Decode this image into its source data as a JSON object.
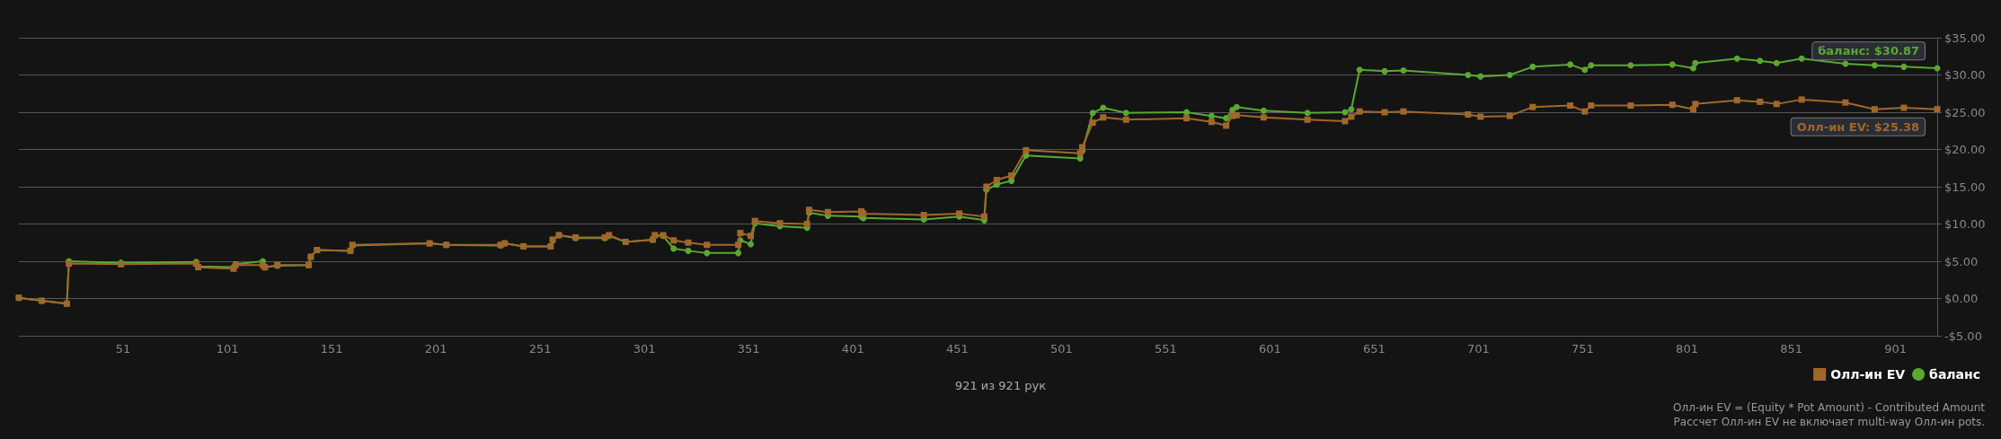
{
  "chart_data": {
    "type": "line",
    "xlabel": "921 из 921 рук",
    "x": [
      1,
      12,
      24,
      25,
      50,
      86,
      87,
      104,
      105,
      118,
      119,
      125,
      140,
      141,
      144,
      160,
      161,
      198,
      206,
      232,
      234,
      243,
      256,
      257,
      260,
      268,
      282,
      284,
      292,
      305,
      306,
      310,
      315,
      322,
      331,
      346,
      347,
      352,
      354,
      366,
      379,
      380,
      389,
      405,
      406,
      435,
      452,
      464,
      465,
      470,
      477,
      484,
      510,
      511,
      516,
      521,
      532,
      561,
      573,
      580,
      583,
      585,
      598,
      619,
      637,
      640,
      644,
      656,
      665,
      696,
      702,
      716,
      727,
      745,
      752,
      755,
      774,
      794,
      804,
      805,
      825,
      836,
      844,
      856,
      877,
      891,
      905,
      921
    ],
    "series": [
      {
        "name": "Олл-ин EV",
        "color": "#a0672a",
        "marker": "square",
        "values": [
          0.1,
          -0.3,
          -0.7,
          4.7,
          4.6,
          4.7,
          4.2,
          4.0,
          4.5,
          4.5,
          4.2,
          4.5,
          4.5,
          5.6,
          6.5,
          6.4,
          7.2,
          7.4,
          7.2,
          7.2,
          7.4,
          7.0,
          7.0,
          7.9,
          8.5,
          8.2,
          8.2,
          8.5,
          7.6,
          7.9,
          8.5,
          8.5,
          7.8,
          7.5,
          7.2,
          7.2,
          8.8,
          8.4,
          10.4,
          10.1,
          10.0,
          11.9,
          11.6,
          11.7,
          11.4,
          11.2,
          11.4,
          11.0,
          15.0,
          15.9,
          16.5,
          19.9,
          19.5,
          20.3,
          23.6,
          24.3,
          24.0,
          24.2,
          23.7,
          23.2,
          24.5,
          24.6,
          24.3,
          24.0,
          23.8,
          24.4,
          25.1,
          25.0,
          25.1,
          24.7,
          24.4,
          24.5,
          25.7,
          25.9,
          25.1,
          25.9,
          25.9,
          26.0,
          25.4,
          26.1,
          26.6,
          26.4,
          26.1,
          26.7,
          26.3,
          25.4,
          25.6,
          25.4
        ]
      },
      {
        "name": "баланс",
        "color": "#5aa832",
        "marker": "circle",
        "values": [
          0.1,
          -0.3,
          -0.7,
          5.0,
          4.8,
          4.9,
          4.3,
          4.2,
          4.6,
          5.0,
          4.2,
          4.4,
          4.5,
          5.6,
          6.5,
          6.4,
          7.1,
          7.4,
          7.2,
          7.1,
          7.4,
          7.0,
          7.0,
          7.8,
          8.5,
          8.1,
          8.1,
          8.4,
          7.6,
          7.9,
          8.4,
          8.4,
          6.7,
          6.4,
          6.1,
          6.1,
          7.8,
          7.3,
          10.1,
          9.7,
          9.5,
          11.5,
          11.1,
          11.0,
          10.8,
          10.6,
          11.0,
          10.5,
          14.6,
          15.3,
          15.8,
          19.2,
          18.8,
          19.8,
          24.9,
          25.6,
          24.9,
          25.0,
          24.5,
          24.2,
          25.3,
          25.7,
          25.2,
          24.9,
          25.0,
          25.4,
          30.7,
          30.5,
          30.6,
          30.0,
          29.8,
          30.0,
          31.1,
          31.4,
          30.7,
          31.3,
          31.3,
          31.4,
          30.9,
          31.6,
          32.2,
          31.9,
          31.6,
          32.2,
          31.5,
          31.3,
          31.1,
          30.9
        ]
      }
    ],
    "xlim": [
      1,
      921
    ],
    "xticks": [
      51,
      101,
      151,
      201,
      251,
      301,
      351,
      401,
      451,
      501,
      551,
      601,
      651,
      701,
      751,
      801,
      851,
      901
    ],
    "ylim": [
      -5,
      35
    ],
    "yticks": [
      {
        "value": -5,
        "label": "-$5.00"
      },
      {
        "value": 0,
        "label": "$0.00"
      },
      {
        "value": 5,
        "label": "$5.00"
      },
      {
        "value": 10,
        "label": "$10.00"
      },
      {
        "value": 15,
        "label": "$15.00"
      },
      {
        "value": 20,
        "label": "$20.00"
      },
      {
        "value": 25,
        "label": "$25.00"
      },
      {
        "value": 30,
        "label": "$30.00"
      },
      {
        "value": 35,
        "label": "$35.00"
      }
    ],
    "grid": "y",
    "legend": "bottom right",
    "line_style": "solid",
    "annotations": [
      {
        "text": "Олл-ин EV: $25.38",
        "x": 921,
        "y": 25.38
      },
      {
        "text": "баланс: $30.87",
        "x": 921,
        "y": 30.87
      },
      "Олл-ин EV = (Equity * Pot Amount) - Contributed Amount",
      "Рассчет Олл-ин EV не включает multi-way Олл-ин pots."
    ]
  }
}
